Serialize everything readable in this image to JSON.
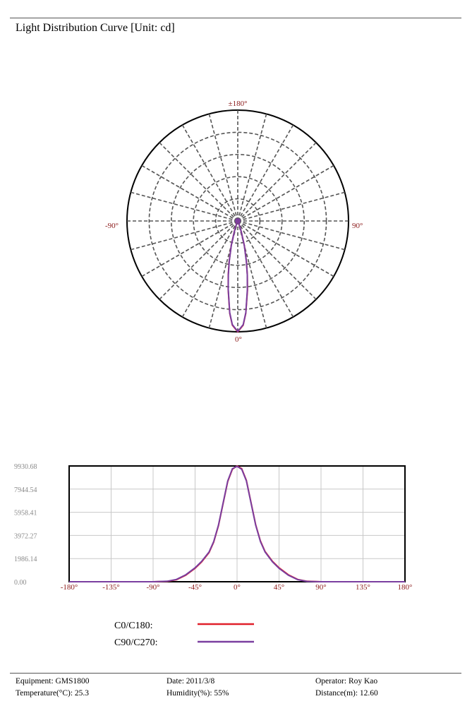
{
  "header": {
    "title": "Light Distribution Curve [Unit: cd]"
  },
  "colors": {
    "c0": "#e0202a",
    "c90": "#7a3fa0",
    "label": "#8b1a1a",
    "grid": "#555555"
  },
  "chart_data": [
    {
      "type": "polar",
      "angle_labels": {
        "top": "±180°",
        "left": "-90°",
        "right": "90°",
        "bottom": "0°"
      },
      "radial_rings": 5,
      "spoke_step_deg": 15,
      "rmax": 9930.68,
      "series": [
        {
          "name": "C0/C180",
          "angles": [
            -25,
            -22,
            -20,
            -18,
            -15,
            -12,
            -10,
            -8,
            -5,
            -3,
            0,
            3,
            5,
            8,
            10,
            12,
            15,
            18,
            20,
            22,
            25
          ],
          "values": [
            150,
            280,
            520,
            1000,
            2250,
            3700,
            4900,
            6200,
            8300,
            9350,
            9930,
            9350,
            8300,
            6250,
            4950,
            3750,
            2300,
            1050,
            540,
            290,
            150
          ]
        },
        {
          "name": "C90/C270",
          "angles": [
            -25,
            -22,
            -20,
            -18,
            -15,
            -12,
            -10,
            -8,
            -5,
            -3,
            0,
            3,
            5,
            8,
            10,
            12,
            15,
            18,
            20,
            22,
            25
          ],
          "values": [
            140,
            260,
            500,
            960,
            2200,
            3650,
            4850,
            6150,
            8250,
            9300,
            9900,
            9300,
            8250,
            6200,
            4900,
            3700,
            2250,
            1000,
            520,
            270,
            140
          ]
        }
      ]
    },
    {
      "type": "line",
      "xlim": [
        -180,
        180
      ],
      "ylim": [
        0,
        9930.68
      ],
      "x_ticks": [
        -180,
        -135,
        -90,
        -45,
        0,
        45,
        90,
        135,
        180
      ],
      "x_tick_labels": [
        "-180°",
        "-135°",
        "-90°",
        "-45°",
        "0°",
        "45°",
        "90°",
        "135°",
        "180°"
      ],
      "y_ticks": [
        0,
        1986.14,
        3972.27,
        5958.41,
        7944.54,
        9930.68
      ],
      "y_tick_labels": [
        "0.00",
        "1986.14",
        "3972.27",
        "5958.41",
        "7944.54",
        "9930.68"
      ],
      "grid": true,
      "series": [
        {
          "name": "C0/C180",
          "label": "C0/C180:",
          "x": [
            -180,
            -90,
            -75,
            -65,
            -55,
            -45,
            -38,
            -30,
            -25,
            -20,
            -15,
            -10,
            -5,
            0,
            5,
            10,
            15,
            20,
            25,
            30,
            38,
            45,
            55,
            65,
            75,
            90,
            180
          ],
          "y": [
            0,
            0,
            30,
            170,
            560,
            1150,
            1700,
            2500,
            3400,
            4800,
            6700,
            8600,
            9650,
            9930,
            9700,
            8700,
            6800,
            4900,
            3500,
            2600,
            1750,
            1200,
            600,
            200,
            40,
            0,
            0
          ]
        },
        {
          "name": "C90/C270",
          "label": "C90/C270:",
          "x": [
            -180,
            -90,
            -75,
            -65,
            -55,
            -45,
            -38,
            -30,
            -25,
            -20,
            -15,
            -10,
            -5,
            0,
            5,
            10,
            15,
            20,
            25,
            30,
            38,
            45,
            55,
            65,
            75,
            90,
            180
          ],
          "y": [
            0,
            0,
            40,
            200,
            600,
            1200,
            1750,
            2550,
            3450,
            4850,
            6750,
            8650,
            9700,
            9900,
            9650,
            8650,
            6750,
            4850,
            3450,
            2550,
            1700,
            1150,
            560,
            180,
            30,
            0,
            0
          ]
        }
      ]
    }
  ],
  "footer": {
    "equipment": "Equipment: GMS1800",
    "temperature": "Temperature(°C): 25.3",
    "date": "Date: 2011/3/8",
    "humidity": "Humidity(%): 55%",
    "operator": "Operator: Roy Kao",
    "distance": "Distance(m): 12.60"
  }
}
